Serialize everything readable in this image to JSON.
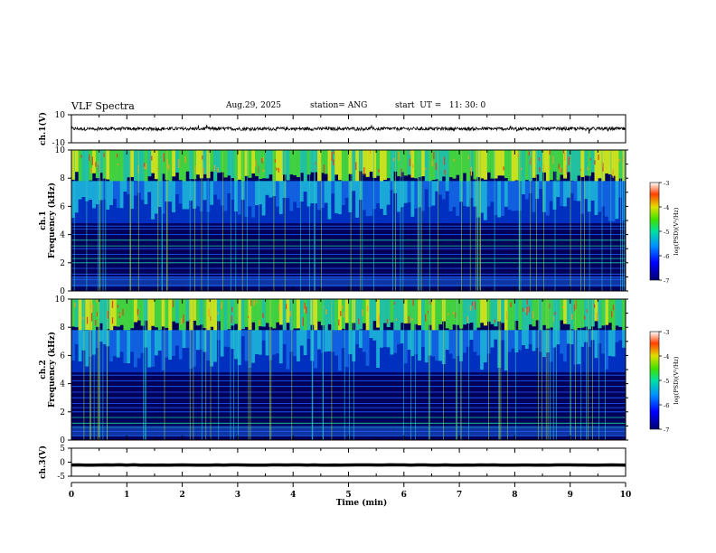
{
  "header": {
    "title": "VLF Spectra",
    "date": "Aug.29, 2025",
    "station": "station= ANG",
    "start": "start  UT =   11: 30: 0"
  },
  "chart_data": [
    {
      "type": "line",
      "name": "ch1-waveform",
      "ylabel": "ch.1(V)",
      "ylim": [
        -10,
        10
      ],
      "y_ticks": [
        "10",
        "-10"
      ],
      "xlim": [
        0,
        10
      ],
      "baseline": 0,
      "amplitude": 1.2
    },
    {
      "type": "heatmap",
      "name": "ch1-spectrogram",
      "ylabel": "ch.1 Frequency (kHz)",
      "ylim": [
        0,
        10
      ],
      "y_ticks": [
        "0",
        "2",
        "4",
        "6",
        "8",
        "10"
      ],
      "xlim": [
        0,
        10
      ],
      "colorbar": {
        "label": "log(PSD)(V²/Hz)",
        "range": [
          -7,
          -3
        ],
        "ticks": [
          "-3",
          "-4",
          "-5",
          "-6",
          "-7"
        ]
      }
    },
    {
      "type": "heatmap",
      "name": "ch2-spectrogram",
      "ylabel": "ch.2 Frequency (kHz)",
      "ylim": [
        0,
        10
      ],
      "y_ticks": [
        "0",
        "2",
        "4",
        "6",
        "8",
        "10"
      ],
      "xlim": [
        0,
        10
      ],
      "colorbar": {
        "label": "log(PSD)(V²/Hz)",
        "range": [
          -7,
          -3
        ],
        "ticks": [
          "-3",
          "-4",
          "-5",
          "-6",
          "-7"
        ]
      }
    },
    {
      "type": "line",
      "name": "ch3-waveform",
      "ylabel": "ch.3(V)",
      "ylim": [
        -5,
        5
      ],
      "y_ticks": [
        "5",
        "0",
        "-5"
      ],
      "xlim": [
        0,
        10
      ],
      "baseline": -1,
      "amplitude": 0.05
    }
  ],
  "x_axis": {
    "label": "Time  (min)",
    "ticks": [
      "0",
      "1",
      "2",
      "3",
      "4",
      "5",
      "6",
      "7",
      "8",
      "9",
      "10"
    ]
  },
  "colors": {
    "low": "#00007a",
    "mid": "#1e90ff",
    "high": "#32cd32",
    "peak": "#ff0000"
  }
}
